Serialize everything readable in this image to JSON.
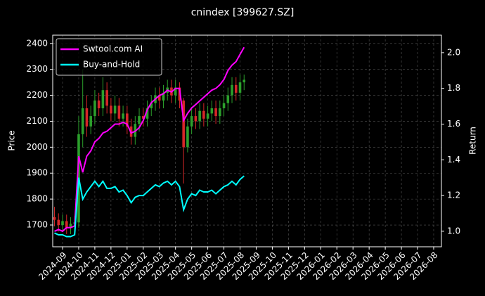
{
  "chart_data": {
    "type": "candlestick",
    "title": "cnindex [399627.SZ]",
    "y_label": "Price",
    "y2_label": "Return",
    "x": [
      -0.5,
      -0.25,
      0,
      0.25,
      0.5,
      0.75,
      1,
      1.25,
      1.5,
      1.75,
      2,
      2.25,
      2.5,
      2.75,
      3,
      3.25,
      3.5,
      3.75,
      4,
      4.25,
      4.5,
      4.75,
      5,
      5.25,
      5.5,
      5.75,
      6,
      6.25,
      6.5,
      6.75,
      7,
      7.25,
      7.5,
      7.75,
      8,
      8.25,
      8.5,
      8.75,
      9,
      9.25,
      9.5,
      9.75,
      10,
      10.25,
      10.5,
      10.75,
      11,
      11.25
    ],
    "open": [
      1730,
      1720,
      1700,
      1715,
      1690,
      1705,
      1710,
      2050,
      2150,
      2080,
      2120,
      2180,
      2150,
      2220,
      2160,
      2130,
      2160,
      2110,
      2130,
      2080,
      2040,
      2090,
      2120,
      2110,
      2150,
      2170,
      2200,
      2180,
      2210,
      2230,
      2200,
      2230,
      2180,
      2000,
      2080,
      2120,
      2100,
      2140,
      2110,
      2130,
      2150,
      2120,
      2150,
      2170,
      2200,
      2240,
      2210,
      2250
    ],
    "high": [
      1770,
      1745,
      1740,
      1740,
      1730,
      1735,
      2120,
      2300,
      2200,
      2160,
      2220,
      2210,
      2270,
      2250,
      2190,
      2200,
      2190,
      2160,
      2160,
      2110,
      2120,
      2150,
      2150,
      2180,
      2200,
      2230,
      2230,
      2240,
      2260,
      2260,
      2260,
      2250,
      2190,
      2110,
      2150,
      2150,
      2170,
      2170,
      2160,
      2180,
      2180,
      2180,
      2200,
      2230,
      2270,
      2270,
      2280,
      2280
    ],
    "low": [
      1695,
      1675,
      1675,
      1665,
      1665,
      1680,
      1690,
      2000,
      2040,
      2050,
      2090,
      2120,
      2120,
      2130,
      2100,
      2100,
      2080,
      2080,
      2050,
      2010,
      2010,
      2060,
      2080,
      2080,
      2120,
      2140,
      2150,
      2150,
      2180,
      2170,
      2170,
      2150,
      1860,
      1980,
      2050,
      2070,
      2070,
      2080,
      2080,
      2100,
      2090,
      2090,
      2120,
      2140,
      2170,
      2180,
      2180,
      2220
    ],
    "close": [
      1720,
      1700,
      1715,
      1690,
      1705,
      1710,
      2050,
      2150,
      2080,
      2120,
      2180,
      2150,
      2220,
      2160,
      2130,
      2160,
      2110,
      2130,
      2080,
      2040,
      2090,
      2120,
      2110,
      2150,
      2170,
      2200,
      2180,
      2210,
      2230,
      2200,
      2230,
      2180,
      2000,
      2080,
      2120,
      2100,
      2140,
      2110,
      2130,
      2150,
      2120,
      2150,
      2170,
      2200,
      2240,
      2210,
      2250,
      2260
    ],
    "up_color": "#2ca02c",
    "down_color": "#d62728",
    "series": [
      {
        "name": "Swtool.com AI",
        "color": "#ff00ff",
        "axis": "y2",
        "values": [
          1.0,
          1.01,
          1.0,
          1.02,
          1.02,
          1.03,
          1.42,
          1.33,
          1.42,
          1.45,
          1.5,
          1.52,
          1.55,
          1.56,
          1.58,
          1.6,
          1.6,
          1.61,
          1.6,
          1.55,
          1.56,
          1.58,
          1.62,
          1.68,
          1.72,
          1.74,
          1.76,
          1.77,
          1.79,
          1.78,
          1.8,
          1.8,
          1.62,
          1.66,
          1.69,
          1.71,
          1.73,
          1.75,
          1.77,
          1.79,
          1.8,
          1.82,
          1.85,
          1.9,
          1.93,
          1.95,
          1.99,
          2.03
        ]
      },
      {
        "name": "Buy-and-Hold",
        "color": "#00ffff",
        "axis": "y2",
        "values": [
          0.99,
          0.98,
          0.98,
          0.97,
          0.97,
          0.98,
          1.3,
          1.18,
          1.22,
          1.25,
          1.28,
          1.25,
          1.28,
          1.24,
          1.24,
          1.25,
          1.22,
          1.23,
          1.2,
          1.16,
          1.19,
          1.2,
          1.2,
          1.22,
          1.24,
          1.26,
          1.25,
          1.27,
          1.28,
          1.26,
          1.28,
          1.25,
          1.12,
          1.18,
          1.21,
          1.2,
          1.23,
          1.22,
          1.22,
          1.23,
          1.21,
          1.23,
          1.25,
          1.26,
          1.28,
          1.26,
          1.29,
          1.31
        ]
      }
    ],
    "xlim": [
      -0.61,
      23.48
    ],
    "xticks": [
      {
        "value": 0,
        "label": "2024-09"
      },
      {
        "value": 1,
        "label": "2024-10"
      },
      {
        "value": 2,
        "label": "2024-11"
      },
      {
        "value": 3,
        "label": "2024-12"
      },
      {
        "value": 4,
        "label": "2025-01"
      },
      {
        "value": 5,
        "label": "2025-02"
      },
      {
        "value": 6,
        "label": "2025-03"
      },
      {
        "value": 7,
        "label": "2025-04"
      },
      {
        "value": 8,
        "label": "2025-05"
      },
      {
        "value": 9,
        "label": "2025-06"
      },
      {
        "value": 10,
        "label": "2025-07"
      },
      {
        "value": 11,
        "label": "2025-08"
      },
      {
        "value": 12,
        "label": "2025-09"
      },
      {
        "value": 13,
        "label": "2025-10"
      },
      {
        "value": 14,
        "label": "2025-11"
      },
      {
        "value": 15,
        "label": "2025-12"
      },
      {
        "value": 16,
        "label": "2026-01"
      },
      {
        "value": 17,
        "label": "2026-02"
      },
      {
        "value": 18,
        "label": "2026-03"
      },
      {
        "value": 19,
        "label": "2026-04"
      },
      {
        "value": 20,
        "label": "2026-05"
      },
      {
        "value": 21,
        "label": "2026-06"
      },
      {
        "value": 22,
        "label": "2026-07"
      },
      {
        "value": 23,
        "label": "2026-08"
      }
    ],
    "ylim": [
      1616,
      2432
    ],
    "yticks": [
      1700,
      1800,
      1900,
      2000,
      2100,
      2200,
      2300,
      2400
    ],
    "y2lim": [
      0.913,
      2.098
    ],
    "y2ticks": [
      {
        "value": 1,
        "label": "1.0"
      },
      1.2,
      1.4,
      1.6,
      1.8,
      {
        "value": 2,
        "label": "2.0"
      }
    ],
    "grid": true,
    "legend": "upper left"
  }
}
